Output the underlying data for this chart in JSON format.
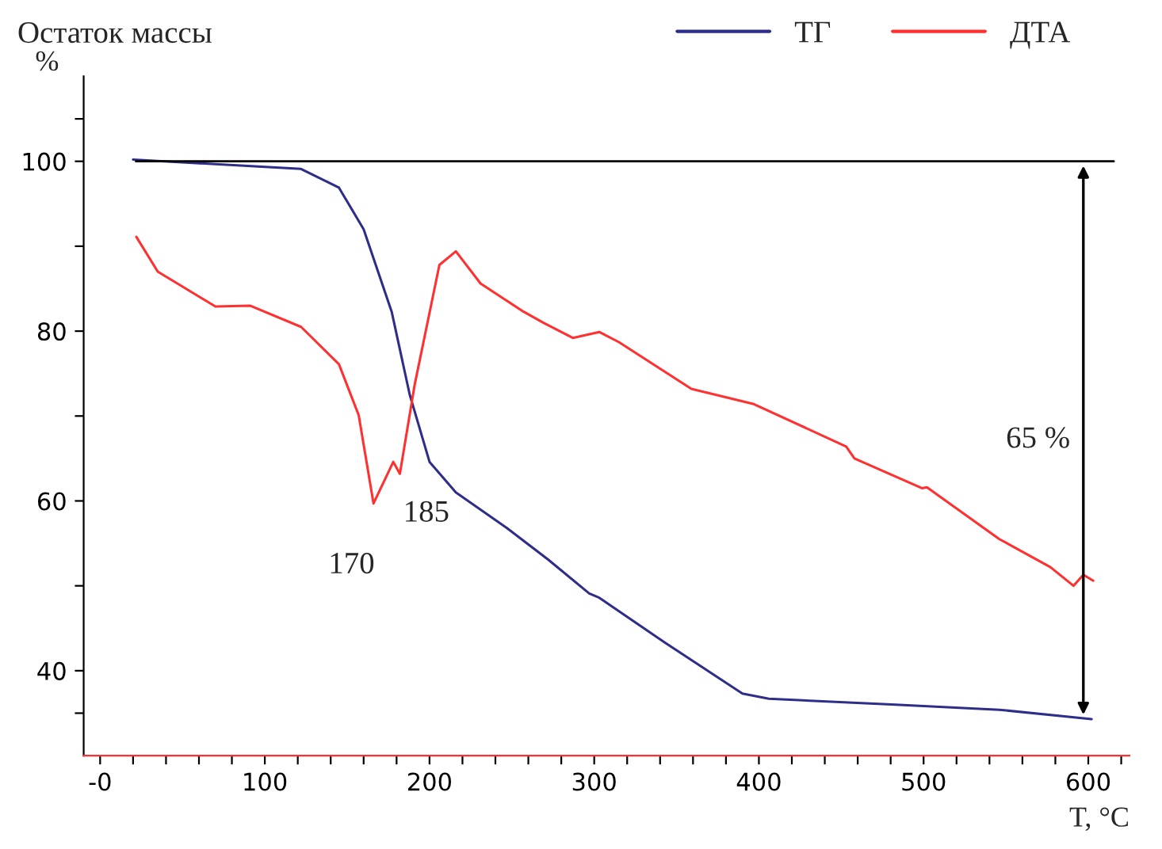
{
  "chart_data": {
    "type": "line",
    "title": "Остаток массы",
    "ylabel": "%",
    "xlabel": "T, °C",
    "xlim": [
      -10,
      625
    ],
    "ylim": [
      30,
      110
    ],
    "xticks": [
      {
        "value": 0,
        "label": "-0"
      },
      {
        "value": 20,
        "label": null
      },
      {
        "value": 40,
        "label": null
      },
      {
        "value": 60,
        "label": null
      },
      {
        "value": 80,
        "label": null
      },
      100,
      {
        "value": 120,
        "label": null
      },
      {
        "value": 140,
        "label": null
      },
      {
        "value": 160,
        "label": null
      },
      {
        "value": 180,
        "label": null
      },
      200,
      {
        "value": 220,
        "label": null
      },
      {
        "value": 240,
        "label": null
      },
      {
        "value": 260,
        "label": null
      },
      {
        "value": 280,
        "label": null
      },
      300,
      {
        "value": 320,
        "label": null
      },
      {
        "value": 340,
        "label": null
      },
      {
        "value": 360,
        "label": null
      },
      {
        "value": 380,
        "label": null
      },
      400,
      {
        "value": 420,
        "label": null
      },
      {
        "value": 440,
        "label": null
      },
      {
        "value": 460,
        "label": null
      },
      {
        "value": 480,
        "label": null
      },
      500,
      {
        "value": 520,
        "label": null
      },
      {
        "value": 540,
        "label": null
      },
      {
        "value": 560,
        "label": null
      },
      {
        "value": 580,
        "label": null
      },
      600,
      {
        "value": 620,
        "label": null
      }
    ],
    "yticks": [
      {
        "value": 35,
        "label": null
      },
      40,
      {
        "value": 50,
        "label": null
      },
      60,
      {
        "value": 70,
        "label": null
      },
      80,
      {
        "value": 90,
        "label": null
      },
      100,
      {
        "value": 105,
        "label": null
      }
    ],
    "grid": false,
    "legend": "top right",
    "line_style": "solid",
    "marker": "none",
    "ref_lines": [
      {
        "axis": "y",
        "value": 100,
        "color": "#000000"
      }
    ],
    "annotations": [
      {
        "text": "170",
        "x": 166,
        "y": 59.7
      },
      {
        "text": "185",
        "x": 182,
        "y": 63.2
      },
      "65 %"
    ],
    "series": [
      {
        "name": "ТГ",
        "color": "#2e2e8a",
        "x": [
          20,
          122,
          145,
          160,
          177,
          188,
          200,
          216,
          247,
          272,
          297,
          303,
          343,
          390,
          406,
          483,
          546,
          602
        ],
        "values": [
          100.2,
          99.1,
          96.9,
          92,
          82.3,
          72.5,
          64.6,
          61,
          56.8,
          53.1,
          49.1,
          48.6,
          43.3,
          37.3,
          36.7,
          36,
          35.4,
          34.3
        ]
      },
      {
        "name": "ДТА",
        "color": "#ff3030",
        "x": [
          22,
          35,
          70,
          91,
          122,
          145,
          157,
          166,
          178,
          182,
          191,
          206,
          216,
          231,
          257,
          269,
          287,
          303,
          315,
          359,
          397,
          453,
          458,
          499,
          502,
          546,
          577,
          591,
          597,
          603
        ],
        "values": [
          91.1,
          87,
          82.9,
          83,
          80.5,
          76.1,
          70.1,
          59.7,
          64.6,
          63.2,
          73.7,
          87.8,
          89.4,
          85.6,
          82.3,
          81,
          79.2,
          79.9,
          78.7,
          73.2,
          71.4,
          66.4,
          65,
          61.5,
          61.6,
          55.5,
          52.2,
          50,
          51.3,
          50.6
        ]
      }
    ]
  }
}
